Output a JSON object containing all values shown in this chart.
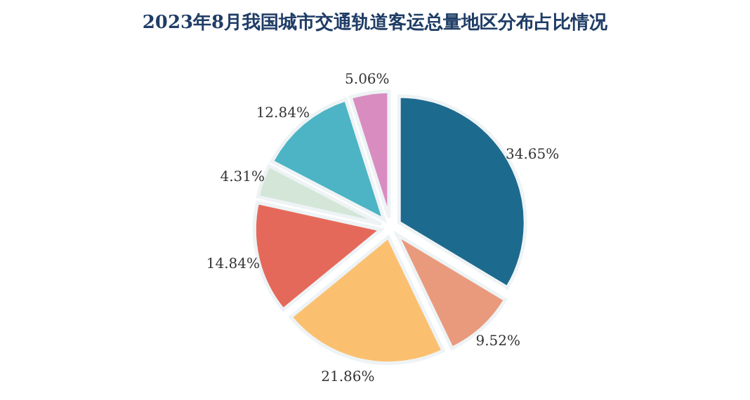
{
  "chart_data": {
    "type": "pie",
    "title": "2023年8月我国城市交通轨道客运总量地区分布占比情况",
    "categories": [
      null,
      null,
      null,
      null,
      null,
      null,
      null
    ],
    "values": [
      34.65,
      9.52,
      21.86,
      14.84,
      4.31,
      12.84,
      5.06
    ],
    "value_labels": [
      "34.65%",
      "9.52%",
      "21.86%",
      "14.84%",
      "4.31%",
      "12.84%",
      "5.06%"
    ],
    "colors": [
      "#1d6a8f",
      "#e99a7c",
      "#fbc06f",
      "#e5695a",
      "#d3e6d8",
      "#4cb4c4",
      "#d98cc0"
    ]
  }
}
